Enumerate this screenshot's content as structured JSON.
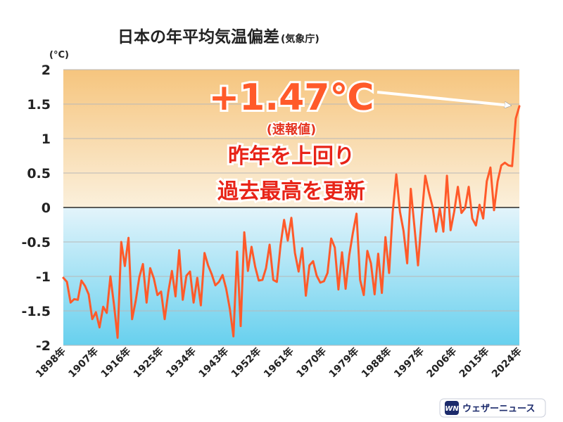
{
  "chart_data": {
    "type": "line",
    "title": "日本の年平均気温偏差",
    "title_source": "(気象庁)",
    "unit_label": "(°C)",
    "xlabel": "",
    "ylabel": "",
    "xlim": [
      1898,
      2024
    ],
    "ylim": [
      -2,
      2
    ],
    "grid": true,
    "yticks": [
      2,
      1.5,
      1,
      0.5,
      0,
      -0.5,
      -1,
      -1.5,
      -2
    ],
    "ytick_labels": [
      "2",
      "1.5",
      "1",
      "0.5",
      "0",
      "-0.5",
      "-1",
      "-1.5",
      "-2"
    ],
    "xticks": [
      1898,
      1907,
      1916,
      1925,
      1934,
      1943,
      1952,
      1961,
      1970,
      1979,
      1988,
      1997,
      2006,
      2015,
      2024
    ],
    "xtick_labels": [
      "1898年",
      "1907年",
      "1916年",
      "1925年",
      "1934年",
      "1943年",
      "1952年",
      "1961年",
      "1970年",
      "1979年",
      "1988年",
      "1997年",
      "2006年",
      "2015年",
      "2024年"
    ],
    "series": [
      {
        "color": "#ff5a2a",
        "x": [
          1898,
          1899,
          1900,
          1901,
          1902,
          1903,
          1904,
          1905,
          1906,
          1907,
          1908,
          1909,
          1910,
          1911,
          1912,
          1913,
          1914,
          1915,
          1916,
          1917,
          1918,
          1919,
          1920,
          1921,
          1922,
          1923,
          1924,
          1925,
          1926,
          1927,
          1928,
          1929,
          1930,
          1931,
          1932,
          1933,
          1934,
          1935,
          1936,
          1937,
          1938,
          1939,
          1940,
          1941,
          1942,
          1943,
          1944,
          1945,
          1946,
          1947,
          1948,
          1949,
          1950,
          1951,
          1952,
          1953,
          1954,
          1955,
          1956,
          1957,
          1958,
          1959,
          1960,
          1961,
          1962,
          1963,
          1964,
          1965,
          1966,
          1967,
          1968,
          1969,
          1970,
          1971,
          1972,
          1973,
          1974,
          1975,
          1976,
          1977,
          1978,
          1979,
          1980,
          1981,
          1982,
          1983,
          1984,
          1985,
          1986,
          1987,
          1988,
          1989,
          1990,
          1991,
          1992,
          1993,
          1994,
          1995,
          1996,
          1997,
          1998,
          1999,
          2000,
          2001,
          2002,
          2003,
          2004,
          2005,
          2006,
          2007,
          2008,
          2009,
          2010,
          2011,
          2012,
          2013,
          2014,
          2015,
          2016,
          2017,
          2018,
          2019,
          2020,
          2021,
          2022,
          2023,
          2024
        ],
        "values": [
          -1.02,
          -1.08,
          -1.38,
          -1.33,
          -1.34,
          -1.06,
          -1.14,
          -1.26,
          -1.62,
          -1.52,
          -1.74,
          -1.44,
          -1.53,
          -1.0,
          -1.41,
          -1.89,
          -0.5,
          -0.85,
          -0.44,
          -1.62,
          -1.35,
          -1.01,
          -0.82,
          -1.38,
          -0.88,
          -1.03,
          -1.27,
          -1.22,
          -1.62,
          -1.23,
          -0.92,
          -1.29,
          -0.62,
          -1.34,
          -0.99,
          -0.93,
          -1.38,
          -1.02,
          -1.42,
          -0.66,
          -0.84,
          -0.97,
          -1.13,
          -1.08,
          -0.98,
          -1.18,
          -1.47,
          -1.87,
          -0.64,
          -1.72,
          -0.36,
          -0.92,
          -0.57,
          -0.86,
          -1.06,
          -1.05,
          -0.88,
          -0.54,
          -1.05,
          -1.08,
          -0.55,
          -0.18,
          -0.48,
          -0.15,
          -0.66,
          -0.93,
          -0.59,
          -1.28,
          -0.84,
          -0.78,
          -0.99,
          -1.09,
          -1.07,
          -0.95,
          -0.45,
          -0.58,
          -1.19,
          -0.65,
          -1.18,
          -0.69,
          -0.37,
          -0.09,
          -1.05,
          -1.27,
          -0.63,
          -0.81,
          -1.26,
          -0.67,
          -1.24,
          -0.43,
          -0.95,
          -0.07,
          0.48,
          -0.06,
          -0.34,
          -0.81,
          0.27,
          -0.28,
          -0.84,
          -0.15,
          0.46,
          0.22,
          0.01,
          -0.35,
          -0.01,
          -0.35,
          0.46,
          -0.33,
          -0.06,
          0.3,
          -0.08,
          -0.01,
          0.3,
          -0.16,
          -0.26,
          0.04,
          -0.16,
          0.38,
          0.58,
          -0.04,
          0.38,
          0.61,
          0.65,
          0.61,
          0.6,
          1.29,
          1.47
        ]
      }
    ],
    "annotations": {
      "value": "+1.47℃",
      "value_note": "(速報値)",
      "line1": "昨年を上回り",
      "line2": "過去最高を更新"
    },
    "bg_colors": {
      "top_warm": "#f6c57e",
      "top_pale": "#fbf0dc",
      "bottom_pale": "#e3f4fb",
      "bottom_cool": "#67d0ee"
    }
  },
  "brand": {
    "logo_text": "WN",
    "name": "ウェザーニュース"
  }
}
